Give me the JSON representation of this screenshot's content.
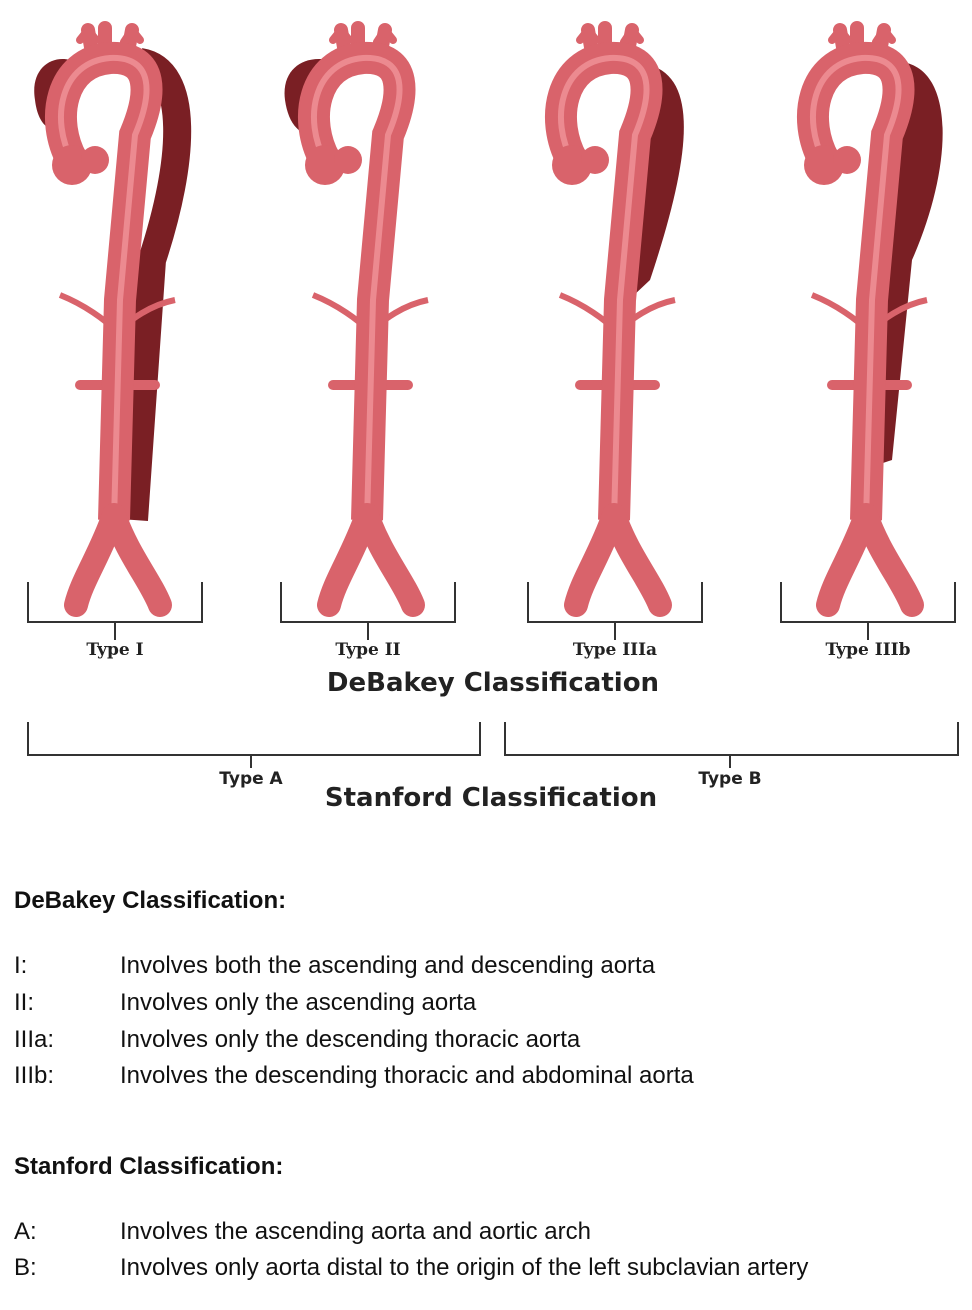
{
  "figure": {
    "debakey_types": [
      "Type I",
      "Type II",
      "Type IIIa",
      "Type IIIb"
    ],
    "debakey_title": "DeBakey Classification",
    "stanford_types": [
      "Type A",
      "Type B"
    ],
    "stanford_title": "Stanford Classification"
  },
  "debakey": {
    "heading": "DeBakey Classification:",
    "items": [
      {
        "code": "I:",
        "text": "Involves both the ascending and descending aorta"
      },
      {
        "code": "II:",
        "text": "Involves only the ascending aorta"
      },
      {
        "code": "IIIa:",
        "text": "Involves only the descending thoracic aorta"
      },
      {
        "code": "IIIb:",
        "text": "Involves the descending thoracic and abdominal aorta"
      }
    ]
  },
  "stanford": {
    "heading": "Stanford Classification:",
    "items": [
      {
        "code": "A:",
        "text": "Involves the ascending aorta and aortic arch"
      },
      {
        "code": "B:",
        "text": "Involves only aorta distal to the origin of the left subclavian artery"
      }
    ]
  }
}
